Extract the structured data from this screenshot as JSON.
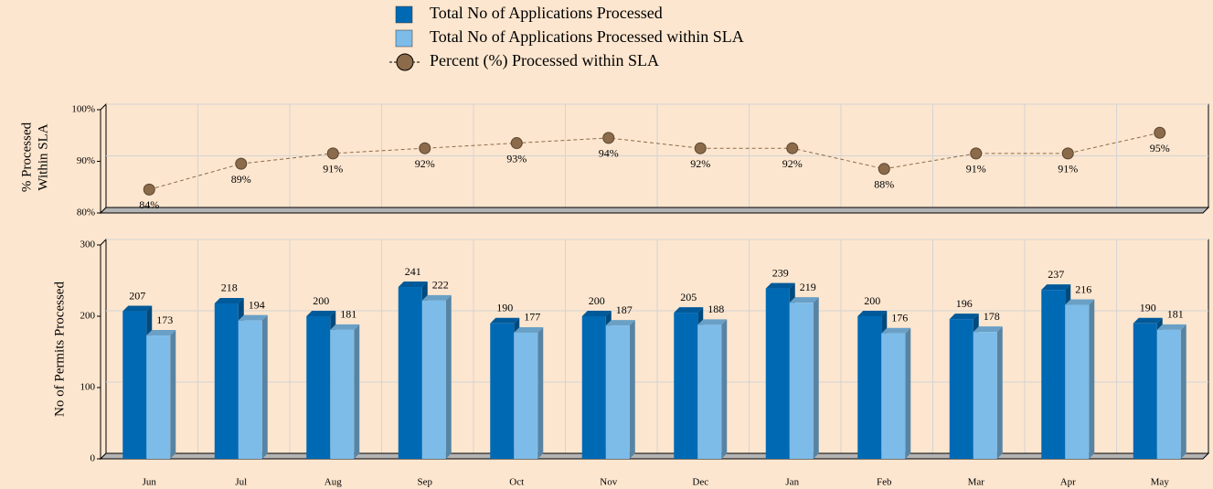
{
  "chart_data": [
    {
      "type": "line",
      "ylabel": [
        "% Processed",
        "Within SLA"
      ],
      "series": [
        {
          "name": "Percent (%) Processed within SLA",
          "color": "#8b6b4a",
          "values": [
            84,
            89,
            91,
            92,
            93,
            94,
            92,
            92,
            88,
            91,
            91,
            95
          ],
          "value_labels": [
            "84%",
            "89%",
            "91%",
            "92%",
            "93%",
            "94%",
            "92%",
            "92%",
            "88%",
            "91%",
            "91%",
            "95%"
          ]
        }
      ],
      "ylim": [
        80,
        100
      ],
      "yticks": [
        {
          "value": 80,
          "label": "80%"
        },
        {
          "value": 90,
          "label": "90%"
        },
        {
          "value": 100,
          "label": "100%"
        }
      ],
      "grid": true
    },
    {
      "type": "bar",
      "ylabel": "No of Permits Processed",
      "categories": [
        "Jun",
        "Jul",
        "Aug",
        "Sep",
        "Oct",
        "Nov",
        "Dec",
        "Jan",
        "Feb",
        "Mar",
        "Apr",
        "May"
      ],
      "series": [
        {
          "name": "Total No of Applications Processed",
          "color": "#0069b4",
          "values": [
            207,
            218,
            200,
            241,
            190,
            200,
            205,
            239,
            200,
            196,
            237,
            190
          ]
        },
        {
          "name": "Total No of Applications Processed within SLA",
          "color": "#7dbce9",
          "values": [
            173,
            194,
            181,
            222,
            177,
            187,
            188,
            219,
            176,
            178,
            216,
            181
          ]
        }
      ],
      "ylim": [
        0,
        300
      ],
      "yticks": [
        0,
        100,
        200,
        300
      ],
      "grid": true
    }
  ]
}
